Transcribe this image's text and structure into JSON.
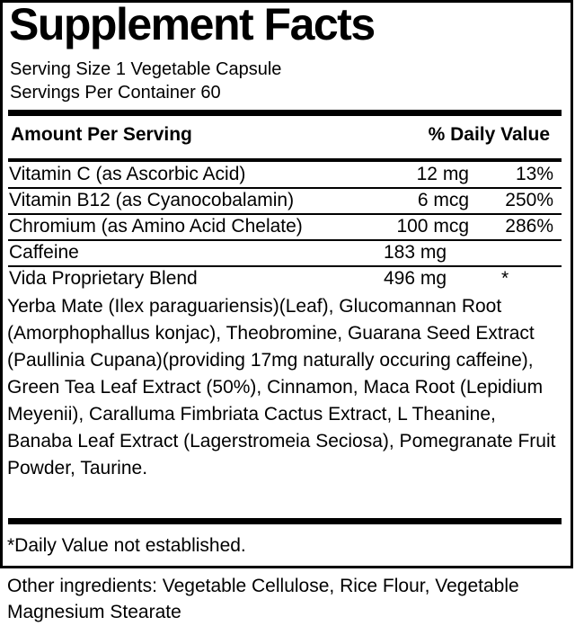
{
  "title": "Supplement Facts",
  "serving_size": "Serving Size 1 Vegetable Capsule",
  "servings_per_container": "Servings Per Container 60",
  "header": {
    "amount": "Amount Per Serving",
    "dv": "% Daily Value"
  },
  "rows": [
    {
      "name": "Vitamin C (as Ascorbic Acid)",
      "amount": "12 mg",
      "dv": "13%"
    },
    {
      "name": "Vitamin B12 (as Cyanocobalamin)",
      "amount": "6 mcg",
      "dv": "250%"
    },
    {
      "name": "Chromium (as Amino Acid Chelate)",
      "amount": "100 mcg",
      "dv": "286%"
    },
    {
      "name": "Caffeine",
      "amount": "183 mg",
      "dv": ""
    },
    {
      "name": "Vida Proprietary Blend",
      "amount": "496 mg",
      "dv": "*"
    }
  ],
  "blend_ingredients": "Yerba Mate (Ilex paraguariensis)(Leaf), Glucomannan Root (Amorphophallus konjac), Theobromine, Guarana Seed Extract (Paullinia Cupana)(providing 17mg naturally occuring caffeine), Green Tea Leaf Extract (50%), Cinnamon, Maca Root (Lepidium Meyenii), Caralluma Fimbriata Cactus Extract, L Theanine, Banaba Leaf Extract (Lagerstromeia Seciosa), Pomegranate Fruit Powder, Taurine.",
  "footnote": "*Daily Value not established.",
  "other_ingredients": "Other ingredients: Vegetable Cellulose, Rice Flour, Vegetable Magnesium Stearate"
}
